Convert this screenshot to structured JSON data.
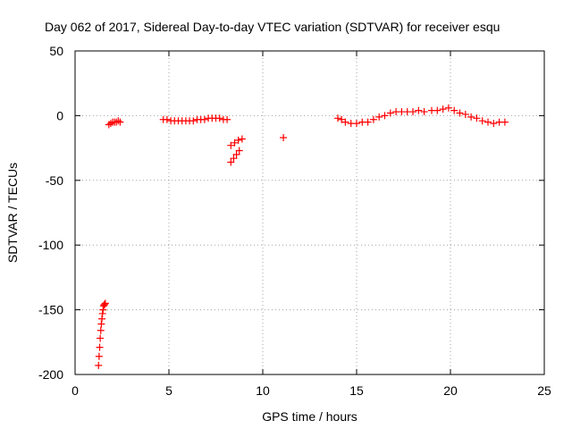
{
  "chart_data": {
    "type": "scatter",
    "title": "Day 062 of 2017, Sidereal Day-to-day VTEC variation (SDTVAR) for receiver esqu",
    "xlabel": "GPS time / hours",
    "ylabel": "SDTVAR / TECUs",
    "xlim": [
      0,
      25
    ],
    "ylim": [
      -200,
      50
    ],
    "xticks": [
      0,
      5,
      10,
      15,
      20,
      25
    ],
    "xtick_labels": [
      "0",
      "5",
      "10",
      "15",
      "20",
      "25"
    ],
    "yticks": [
      50,
      0,
      -50,
      -100,
      -150,
      -200
    ],
    "ytick_labels": [
      "50",
      "0",
      "-50",
      "-100",
      "-150",
      "-200"
    ],
    "grid": true,
    "marker": "+",
    "color": "#ff0000",
    "series": [
      {
        "name": "SDTVAR",
        "x": [
          1.25,
          1.28,
          1.31,
          1.34,
          1.37,
          1.4,
          1.43,
          1.46,
          1.49,
          1.52,
          1.55,
          1.58,
          1.61,
          1.8,
          1.9,
          2.0,
          2.1,
          2.2,
          2.3,
          2.4,
          4.7,
          4.9,
          5.1,
          5.3,
          5.5,
          5.7,
          5.9,
          6.1,
          6.3,
          6.5,
          6.7,
          6.9,
          7.1,
          7.3,
          7.5,
          7.7,
          7.9,
          8.1,
          8.3,
          8.5,
          8.7,
          8.9,
          8.3,
          8.45,
          8.6,
          8.75,
          11.1,
          14.0,
          14.2,
          14.4,
          14.7,
          15.0,
          15.3,
          15.6,
          15.9,
          16.2,
          16.5,
          16.8,
          17.1,
          17.4,
          17.7,
          18.0,
          18.3,
          18.6,
          19.0,
          19.3,
          19.6,
          19.9,
          20.2,
          20.5,
          20.8,
          21.1,
          21.4,
          21.7,
          22.0,
          22.3,
          22.6,
          22.9
        ],
        "y": [
          -193,
          -186,
          -179,
          -172,
          -166,
          -161,
          -157,
          -153,
          -150,
          -147,
          -146,
          -146,
          -145,
          -7,
          -6,
          -5,
          -5,
          -5,
          -4,
          -5,
          -3,
          -3,
          -4,
          -4,
          -4,
          -4,
          -4,
          -4,
          -4,
          -3,
          -3,
          -3,
          -2,
          -2,
          -2,
          -2,
          -3,
          -3,
          -23,
          -21,
          -19,
          -18,
          -36,
          -33,
          -30,
          -27,
          -17,
          -2,
          -3,
          -5,
          -6,
          -6,
          -5,
          -5,
          -3,
          -1,
          0,
          2,
          3,
          3,
          3,
          3,
          4,
          3,
          4,
          4,
          5,
          6,
          4,
          2,
          1,
          -1,
          -2,
          -4,
          -5,
          -6,
          -5,
          -5
        ]
      }
    ]
  }
}
